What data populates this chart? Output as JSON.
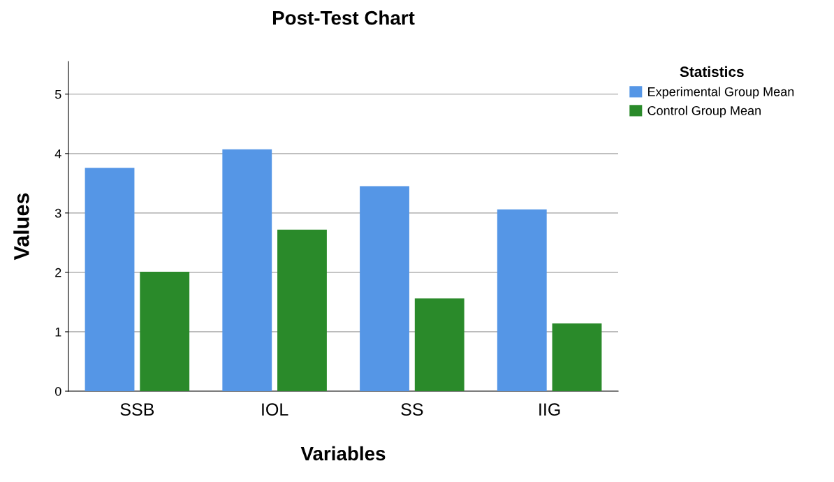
{
  "chart_data": {
    "type": "bar",
    "title": "Post-Test Chart",
    "xlabel": "Variables",
    "ylabel": "Values",
    "legend_title": "Statistics",
    "categories": [
      "SSB",
      "IOL",
      "SS",
      "IIG"
    ],
    "series": [
      {
        "name": "Experimental Group Mean",
        "color": "#5596e6",
        "values": [
          3.76,
          4.07,
          3.45,
          3.06
        ]
      },
      {
        "name": "Control Group Mean",
        "color": "#2a8a2a",
        "values": [
          2.01,
          2.72,
          1.56,
          1.14
        ]
      }
    ],
    "ylim": [
      0,
      5.55
    ],
    "yticks": [
      0,
      1,
      2,
      3,
      4,
      5
    ],
    "grid": "y",
    "legend": "top right"
  }
}
